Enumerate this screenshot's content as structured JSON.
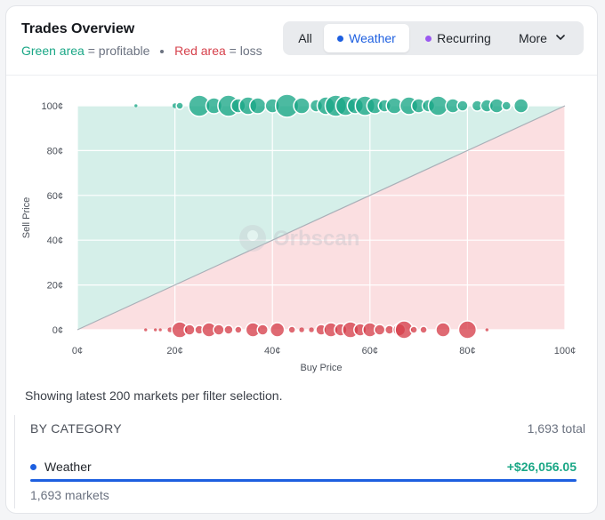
{
  "header": {
    "title": "Trades Overview",
    "legend_green": "Green area",
    "legend_green_desc": "= profitable",
    "legend_red": "Red area",
    "legend_red_desc": "= loss"
  },
  "filters": {
    "all": "All",
    "weather": "Weather",
    "recurring": "Recurring",
    "more": "More",
    "active": "Weather"
  },
  "colors": {
    "profit": "#1aa786",
    "loss": "#d6404b",
    "weather": "#1d5fe0",
    "recurring": "#9b59f0",
    "profit_area": "#d5efe9",
    "loss_area": "#fbdfe1"
  },
  "chart_data": {
    "type": "scatter",
    "xlabel": "Buy Price",
    "ylabel": "Sell Price",
    "x_ticks": [
      "0¢",
      "20¢",
      "40¢",
      "60¢",
      "80¢",
      "100¢"
    ],
    "y_ticks": [
      "0¢",
      "20¢",
      "40¢",
      "60¢",
      "80¢",
      "100¢"
    ],
    "xlim": [
      0,
      100
    ],
    "ylim": [
      0,
      100
    ],
    "watermark": "Orbscan",
    "diagonal": [
      [
        0,
        0
      ],
      [
        100,
        100
      ]
    ],
    "series": [
      {
        "group": "profitable",
        "color": "#1aa786",
        "points": [
          {
            "x": 12,
            "y": 100,
            "size": 2
          },
          {
            "x": 20,
            "y": 100,
            "size": 3
          },
          {
            "x": 21,
            "y": 100,
            "size": 4
          },
          {
            "x": 25,
            "y": 100,
            "size": 12
          },
          {
            "x": 28,
            "y": 100,
            "size": 9
          },
          {
            "x": 31,
            "y": 100,
            "size": 12
          },
          {
            "x": 33,
            "y": 100,
            "size": 8
          },
          {
            "x": 35,
            "y": 100,
            "size": 10
          },
          {
            "x": 37,
            "y": 100,
            "size": 9
          },
          {
            "x": 40,
            "y": 100,
            "size": 8
          },
          {
            "x": 43,
            "y": 100,
            "size": 13
          },
          {
            "x": 46,
            "y": 100,
            "size": 9
          },
          {
            "x": 49,
            "y": 100,
            "size": 7
          },
          {
            "x": 51,
            "y": 100,
            "size": 10
          },
          {
            "x": 53,
            "y": 100,
            "size": 12
          },
          {
            "x": 55,
            "y": 100,
            "size": 11
          },
          {
            "x": 57,
            "y": 100,
            "size": 9
          },
          {
            "x": 59,
            "y": 100,
            "size": 11
          },
          {
            "x": 61,
            "y": 100,
            "size": 9
          },
          {
            "x": 63,
            "y": 100,
            "size": 7
          },
          {
            "x": 65,
            "y": 100,
            "size": 9
          },
          {
            "x": 68,
            "y": 100,
            "size": 10
          },
          {
            "x": 70,
            "y": 100,
            "size": 8
          },
          {
            "x": 72,
            "y": 100,
            "size": 7
          },
          {
            "x": 74,
            "y": 100,
            "size": 11
          },
          {
            "x": 77,
            "y": 100,
            "size": 8
          },
          {
            "x": 79,
            "y": 100,
            "size": 6
          },
          {
            "x": 82,
            "y": 100,
            "size": 6
          },
          {
            "x": 84,
            "y": 100,
            "size": 7
          },
          {
            "x": 86,
            "y": 100,
            "size": 8
          },
          {
            "x": 88,
            "y": 100,
            "size": 5
          },
          {
            "x": 91,
            "y": 100,
            "size": 8
          }
        ]
      },
      {
        "group": "loss",
        "color": "#d6404b",
        "points": [
          {
            "x": 14,
            "y": 0,
            "size": 2
          },
          {
            "x": 16,
            "y": 0,
            "size": 2
          },
          {
            "x": 17,
            "y": 0,
            "size": 2
          },
          {
            "x": 19,
            "y": 0,
            "size": 3
          },
          {
            "x": 21,
            "y": 0,
            "size": 9
          },
          {
            "x": 23,
            "y": 0,
            "size": 6
          },
          {
            "x": 25,
            "y": 0,
            "size": 5
          },
          {
            "x": 27,
            "y": 0,
            "size": 8
          },
          {
            "x": 29,
            "y": 0,
            "size": 6
          },
          {
            "x": 31,
            "y": 0,
            "size": 5
          },
          {
            "x": 33,
            "y": 0,
            "size": 4
          },
          {
            "x": 36,
            "y": 0,
            "size": 8
          },
          {
            "x": 38,
            "y": 0,
            "size": 6
          },
          {
            "x": 41,
            "y": 0,
            "size": 8
          },
          {
            "x": 44,
            "y": 0,
            "size": 4
          },
          {
            "x": 46,
            "y": 0,
            "size": 3
          },
          {
            "x": 48,
            "y": 0,
            "size": 3
          },
          {
            "x": 50,
            "y": 0,
            "size": 6
          },
          {
            "x": 52,
            "y": 0,
            "size": 8
          },
          {
            "x": 54,
            "y": 0,
            "size": 7
          },
          {
            "x": 56,
            "y": 0,
            "size": 9
          },
          {
            "x": 58,
            "y": 0,
            "size": 7
          },
          {
            "x": 60,
            "y": 0,
            "size": 8
          },
          {
            "x": 62,
            "y": 0,
            "size": 6
          },
          {
            "x": 64,
            "y": 0,
            "size": 5
          },
          {
            "x": 66,
            "y": 0,
            "size": 7
          },
          {
            "x": 67,
            "y": 0,
            "size": 10
          },
          {
            "x": 69,
            "y": 0,
            "size": 4
          },
          {
            "x": 71,
            "y": 0,
            "size": 4
          },
          {
            "x": 75,
            "y": 0,
            "size": 8
          },
          {
            "x": 80,
            "y": 0,
            "size": 10
          },
          {
            "x": 84,
            "y": 0,
            "size": 2
          }
        ]
      }
    ]
  },
  "note": "Showing latest 200 markets per filter selection.",
  "category": {
    "heading": "BY CATEGORY",
    "total": "1,693 total",
    "rows": [
      {
        "name": "Weather",
        "amount": "+$26,056.05",
        "count": "1,693 markets",
        "color": "#1d5fe0"
      }
    ]
  }
}
